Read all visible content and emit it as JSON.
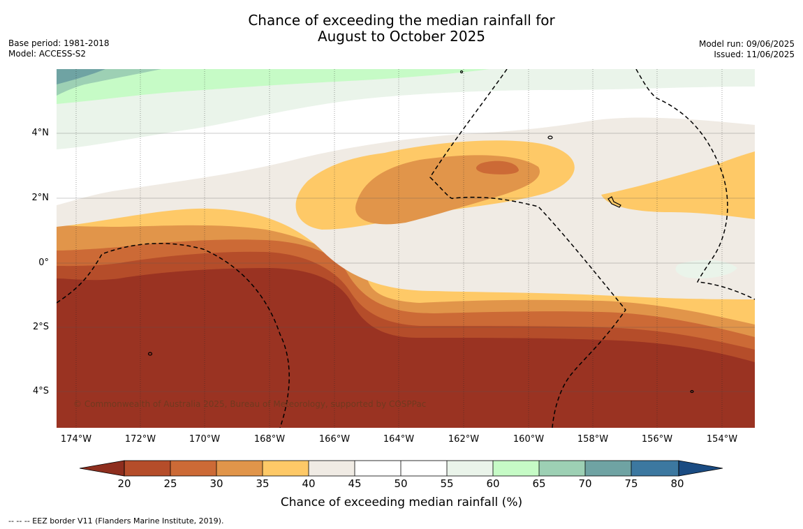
{
  "title": {
    "line1": "Chance of exceeding the median rainfall for",
    "line2": "August to October 2025"
  },
  "meta_left": {
    "base_period": "Base period: 1981-2018",
    "model": "Model: ACCESS-S2"
  },
  "meta_right": {
    "model_run": "Model run: 09/06/2025",
    "issued": "Issued: 11/06/2025"
  },
  "map": {
    "lon_labels": [
      "174°W",
      "172°W",
      "170°W",
      "168°W",
      "166°W",
      "164°W",
      "162°W",
      "160°W",
      "158°W",
      "156°W",
      "154°W"
    ],
    "lat_labels": [
      "4°N",
      "2°N",
      "0°",
      "2°S",
      "4°S"
    ],
    "copyright": "© Commonwealth of Australia 2025, Bureau of Meteorology, supported by COSPPac",
    "colors": {
      "20": "#9a3322",
      "25": "#b54d2a",
      "30": "#cc6a36",
      "35": "#e1954a",
      "40": "#fec967",
      "45": "#f0ebe4",
      "55": "#ffffff",
      "60": "#eaf4ea",
      "65": "#c6fbc6",
      "70": "#9dd0b4",
      "75": "#6fa3a3",
      "80": "#3c78a0"
    }
  },
  "colorbar": {
    "ticks": [
      "20",
      "25",
      "30",
      "35",
      "40",
      "45",
      "50",
      "55",
      "60",
      "65",
      "70",
      "75",
      "80"
    ],
    "colors": [
      "#8e2e1e",
      "#b54d2a",
      "#cc6a36",
      "#e1954a",
      "#fec967",
      "#f0ebe4",
      "#ffffff",
      "#ffffff",
      "#eaf4ea",
      "#c6fbc6",
      "#9dd0b4",
      "#6fa3a3",
      "#3c78a0",
      "#1a4b82"
    ],
    "label": "Chance of exceeding median rainfall (%)"
  },
  "footer": "--  --  -- EEZ border V11 (Flanders Marine Institute, 2019)."
}
